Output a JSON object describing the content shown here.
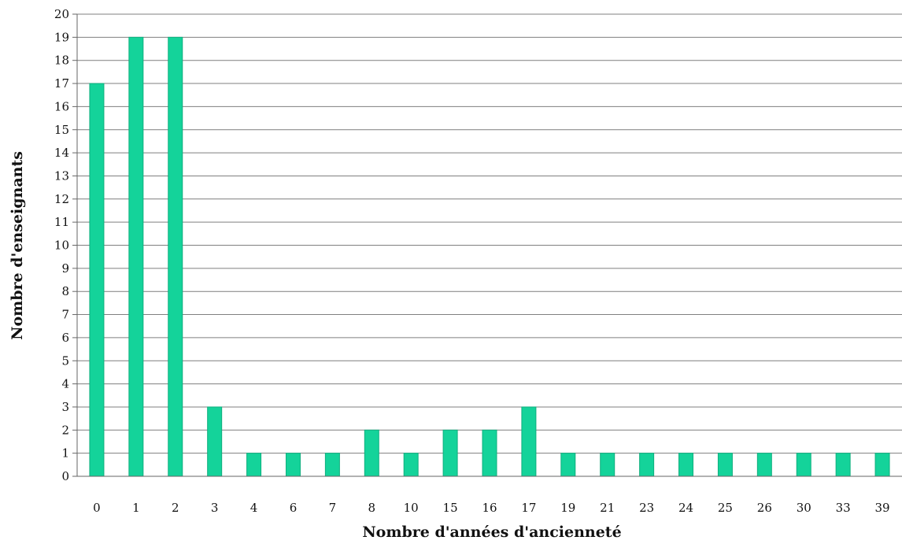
{
  "chart_data": {
    "type": "bar",
    "title": "",
    "xlabel": "Nombre d'années d'ancienneté",
    "ylabel": "Nombre d'enseignants",
    "categories": [
      "0",
      "1",
      "2",
      "3",
      "4",
      "6",
      "7",
      "8",
      "10",
      "15",
      "16",
      "17",
      "19",
      "21",
      "23",
      "24",
      "25",
      "26",
      "30",
      "33",
      "39"
    ],
    "values": [
      17,
      19,
      19,
      3,
      1,
      1,
      1,
      2,
      1,
      2,
      2,
      3,
      1,
      1,
      1,
      1,
      1,
      1,
      1,
      1,
      1
    ],
    "ylim": [
      0,
      20
    ],
    "yticks": [
      0,
      1,
      2,
      3,
      4,
      5,
      6,
      7,
      8,
      9,
      10,
      11,
      12,
      13,
      14,
      15,
      16,
      17,
      18,
      19,
      20
    ],
    "grid": true,
    "legend": "none",
    "bar_color": "#14D39A",
    "bar_edge_color": "#0FAF7E",
    "grid_color": "#7f7f7f"
  }
}
